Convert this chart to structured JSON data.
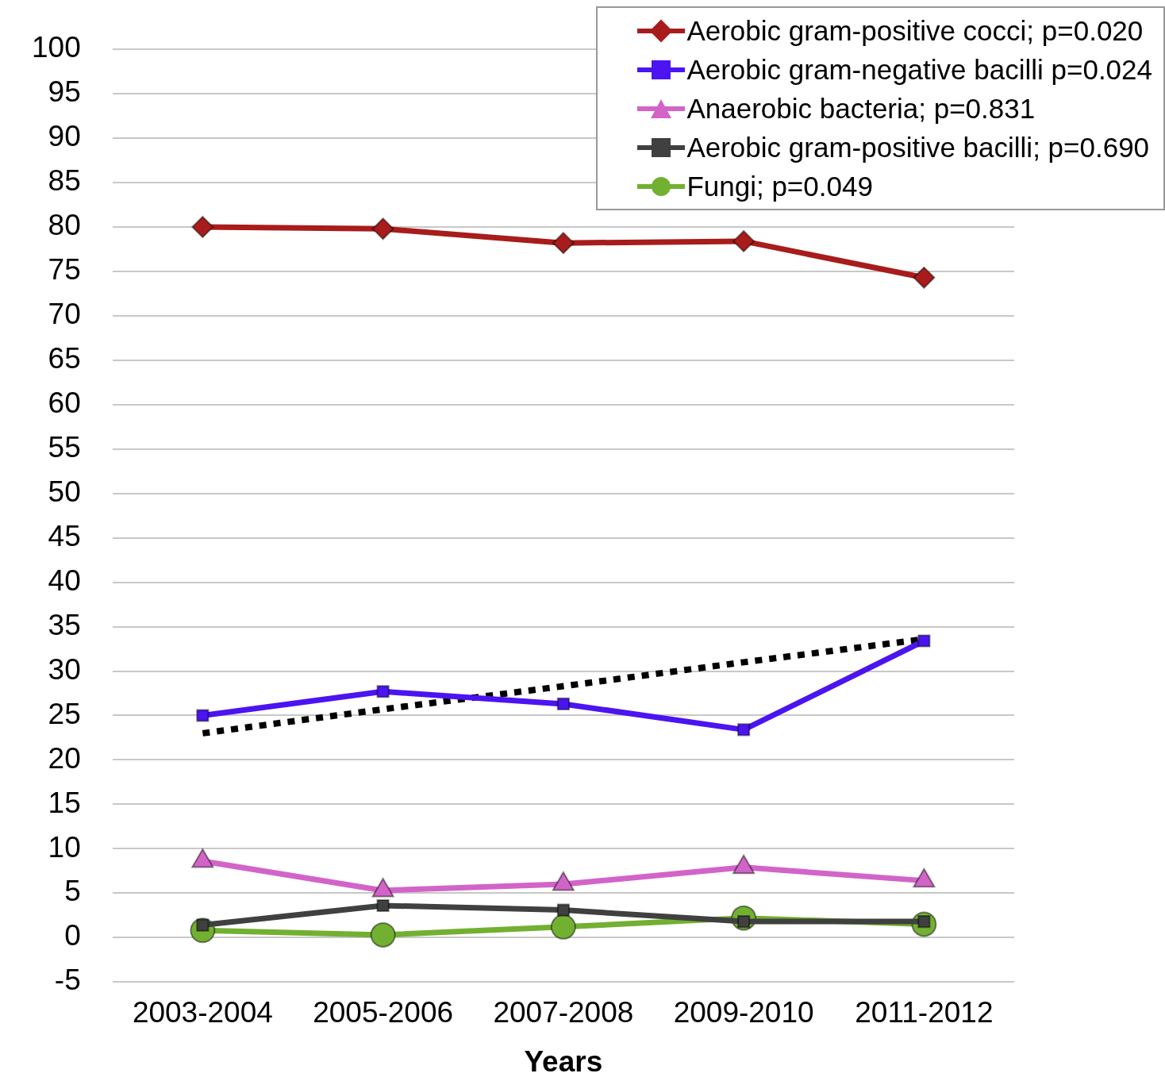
{
  "chart_data": {
    "type": "line",
    "xlabel": "Years",
    "categories": [
      "2003-2004",
      "2005-2006",
      "2007-2008",
      "2009-2010",
      "2011-2012"
    ],
    "series": [
      {
        "name": "Aerobic gram-positive cocci; p=0.020",
        "color": "#a81c1c",
        "marker": "diamond",
        "values": [
          80.0,
          79.8,
          78.2,
          78.4,
          74.3
        ]
      },
      {
        "name": "Aerobic gram-negative bacilli p=0.024",
        "color": "#4b14f0",
        "marker": "square",
        "values": [
          25.0,
          27.7,
          26.3,
          23.4,
          33.4
        ]
      },
      {
        "name": "Anaerobic bacteria; p=0.831",
        "color": "#d264c8",
        "marker": "triangle",
        "values": [
          8.6,
          5.3,
          6.0,
          7.9,
          6.4
        ]
      },
      {
        "name": "Aerobic gram-positive bacilli; p=0.690",
        "color": "#404040",
        "marker": "square",
        "values": [
          1.4,
          3.6,
          3.1,
          1.8,
          1.8
        ]
      },
      {
        "name": "Fungi; p=0.049",
        "color": "#72b032",
        "marker": "circle",
        "values": [
          0.8,
          0.3,
          1.2,
          2.2,
          1.5
        ]
      },
      {
        "type": "line",
        "color": "#000000",
        "marker": "none",
        "line_style": "dotted",
        "values": [
          23.0,
          25.7,
          28.3,
          31.0,
          33.6
        ]
      }
    ],
    "ylim": [
      -5,
      100
    ],
    "yticks": [
      -5,
      0,
      5,
      10,
      15,
      20,
      25,
      30,
      35,
      40,
      45,
      50,
      55,
      60,
      65,
      70,
      75,
      80,
      85,
      90,
      95,
      100
    ],
    "grid": "y",
    "legend": "top right"
  }
}
